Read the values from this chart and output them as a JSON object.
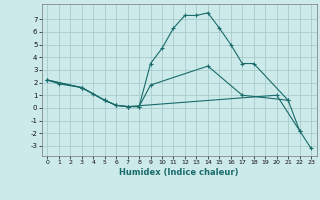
{
  "xlabel": "Humidex (Indice chaleur)",
  "background_color": "#cceaea",
  "grid_color": "#aacccc",
  "line_color": "#1a6b6b",
  "xlim": [
    -0.5,
    23.5
  ],
  "ylim": [
    -3.8,
    8.2
  ],
  "yticks": [
    -3,
    -2,
    -1,
    0,
    1,
    2,
    3,
    4,
    5,
    6,
    7
  ],
  "xticks": [
    0,
    1,
    2,
    3,
    4,
    5,
    6,
    7,
    8,
    9,
    10,
    11,
    12,
    13,
    14,
    15,
    16,
    17,
    18,
    19,
    20,
    21,
    22,
    23
  ],
  "series": [
    {
      "x": [
        0,
        1,
        3,
        4,
        5,
        6,
        7,
        8,
        9,
        10,
        11,
        12,
        13,
        14,
        15,
        16,
        17,
        18,
        21
      ],
      "y": [
        2.2,
        1.9,
        1.6,
        1.1,
        0.6,
        0.2,
        0.1,
        0.1,
        3.5,
        4.7,
        6.3,
        7.3,
        7.3,
        7.5,
        6.3,
        5.0,
        3.5,
        3.5,
        0.6
      ]
    },
    {
      "x": [
        0,
        3,
        5,
        6,
        7,
        8,
        9,
        14,
        17,
        21,
        22
      ],
      "y": [
        2.2,
        1.6,
        0.6,
        0.2,
        0.1,
        0.1,
        1.8,
        3.3,
        1.0,
        0.6,
        -1.8
      ]
    },
    {
      "x": [
        0,
        3,
        5,
        6,
        7,
        20,
        22,
        23
      ],
      "y": [
        2.2,
        1.6,
        0.6,
        0.2,
        0.1,
        1.0,
        -1.8,
        -3.2
      ]
    }
  ]
}
